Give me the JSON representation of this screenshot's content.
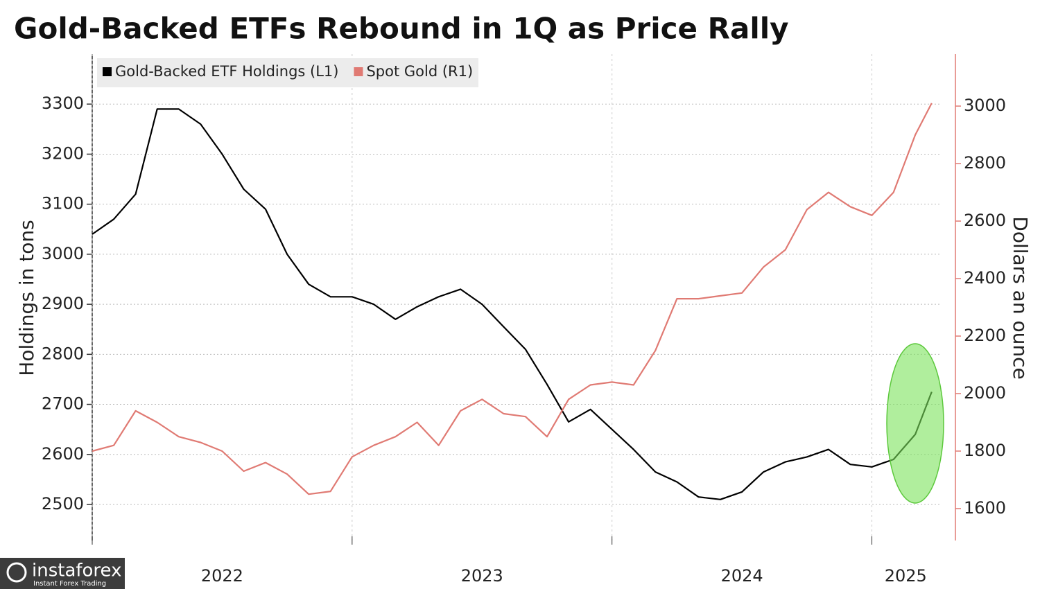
{
  "chart_data": {
    "type": "line",
    "title": "Gold-Backed ETFs Rebound in 1Q as Price Rally",
    "ylabel": "Holdings in tons",
    "y2label": "Dollars an ounce",
    "x": [
      2022,
      2022.083,
      2022.167,
      2022.25,
      2022.333,
      2022.417,
      2022.5,
      2022.583,
      2022.667,
      2022.75,
      2022.833,
      2022.917,
      2023,
      2023.083,
      2023.167,
      2023.25,
      2023.333,
      2023.417,
      2023.5,
      2023.583,
      2023.667,
      2023.75,
      2023.833,
      2023.917,
      2024,
      2024.083,
      2024.167,
      2024.25,
      2024.333,
      2024.417,
      2024.5,
      2024.583,
      2024.667,
      2024.75,
      2024.833,
      2024.917,
      2025,
      2025.083,
      2025.167,
      2025.23
    ],
    "xlim": [
      2022,
      2025.26
    ],
    "xticks": [
      2022,
      2023,
      2024,
      2025
    ],
    "series": [
      {
        "name": "Gold-Backed ETF Holdings (L1)",
        "color": "#000000",
        "axis": "y",
        "values": [
          3040,
          3070,
          3120,
          3290,
          3290,
          3260,
          3200,
          3130,
          3090,
          3000,
          2940,
          2915,
          2915,
          2900,
          2870,
          2895,
          2915,
          2930,
          2900,
          2855,
          2810,
          2740,
          2665,
          2690,
          2650,
          2610,
          2565,
          2545,
          2515,
          2510,
          2525,
          2565,
          2585,
          2595,
          2610,
          2580,
          2575,
          2590,
          2640,
          2725
        ]
      },
      {
        "name": "Spot Gold (R1)",
        "color": "#e07a73",
        "axis": "y2",
        "values": [
          1800,
          1820,
          1940,
          1900,
          1850,
          1830,
          1800,
          1730,
          1760,
          1720,
          1650,
          1660,
          1780,
          1820,
          1850,
          1900,
          1820,
          1940,
          1980,
          1930,
          1920,
          1850,
          1980,
          2030,
          2040,
          2030,
          2150,
          2330,
          2330,
          2340,
          2350,
          2440,
          2500,
          2640,
          2700,
          2650,
          2620,
          2700,
          2900,
          3010
        ]
      }
    ],
    "ylim": [
      2428,
      3400
    ],
    "yticks": [
      2500,
      2600,
      2700,
      2800,
      2900,
      3000,
      3100,
      3200,
      3300
    ],
    "y2lim": [
      1489,
      3181
    ],
    "y2ticks": [
      1600,
      1800,
      2000,
      2200,
      2400,
      2600,
      2800,
      3000
    ],
    "grid": true,
    "legend": "top-left"
  },
  "watermark": {
    "brand": "instaforex",
    "tagline": "Instant Forex Trading"
  }
}
